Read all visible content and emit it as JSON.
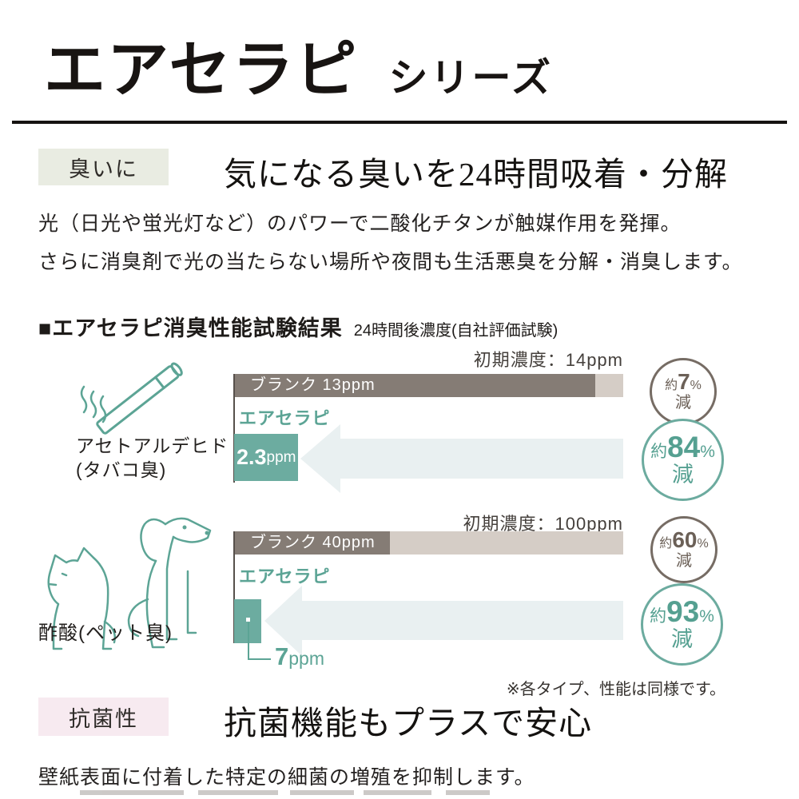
{
  "header": {
    "title": "エアセラピ",
    "series_suffix": "シリーズ"
  },
  "deodorize_section": {
    "tag": "臭いに",
    "heading": "気になる臭いを24時間吸着・分解",
    "body_line1": "光（日光や蛍光灯など）のパワーで二酸化チタンが触媒作用を発揮。",
    "body_line2": "さらに消臭剤で光の当たらない場所や夜間も生活悪臭を分解・消臭します。",
    "results_title": "■エアセラピ消臭性能試験結果",
    "results_subtitle": "24時間後濃度(自社評価試験)",
    "note": "※各タイプ、性能は同様です。"
  },
  "charts": [
    {
      "initial": "初期濃度：14ppm",
      "blank_bar_label": "ブランク 13ppm",
      "series_label": "エアセラピ",
      "value_main": "2.3",
      "value_unit": "ppm",
      "item_line1": "アセトアルデヒド",
      "item_line2": "(タバコ臭)",
      "badge_small": {
        "approx": "約",
        "value": "7",
        "pct": "%",
        "word": "減"
      },
      "badge_big": {
        "approx": "約",
        "value": "84",
        "pct": "%",
        "word": "減"
      }
    },
    {
      "initial": "初期濃度：100ppm",
      "blank_bar_label": "ブランク 40ppm",
      "series_label": "エアセラピ",
      "value_main": "7",
      "value_unit": "ppm",
      "item_line1": "酢酸(ペット臭)",
      "badge_small": {
        "approx": "約",
        "value": "60",
        "pct": "%",
        "word": "減"
      },
      "badge_big": {
        "approx": "約",
        "value": "93",
        "pct": "%",
        "word": "減"
      }
    }
  ],
  "chart_data": [
    {
      "type": "bar",
      "title": "エアセラピ消臭性能試験結果（アセトアルデヒド／タバコ臭）",
      "item": "アセトアルデヒド(タバコ臭)",
      "initial_concentration_ppm": 14,
      "categories": [
        "ブランク",
        "エアセラピ"
      ],
      "values_ppm_after_24h": [
        13,
        2.3
      ],
      "reduction_percent": [
        7,
        84
      ],
      "unit": "ppm",
      "xlim": [
        0,
        14
      ],
      "orientation": "horizontal"
    },
    {
      "type": "bar",
      "title": "エアセラピ消臭性能試験結果（酢酸／ペット臭）",
      "item": "酢酸(ペット臭)",
      "initial_concentration_ppm": 100,
      "categories": [
        "ブランク",
        "エアセラピ"
      ],
      "values_ppm_after_24h": [
        40,
        7
      ],
      "reduction_percent": [
        60,
        93
      ],
      "unit": "ppm",
      "xlim": [
        0,
        100
      ],
      "orientation": "horizontal"
    }
  ],
  "antibacterial_section": {
    "tag": "抗菌性",
    "heading": "抗菌機能もプラスで安心",
    "body": "壁紙表面に付着した特定の細菌の増殖を抑制します。"
  },
  "icons": {
    "chart1": "cigarette-smoke-icon",
    "chart2": "dog-and-cat-icon",
    "arrows": "reduction-arrow-icon"
  },
  "colors": {
    "accent_teal": "#6caca0",
    "teal_text": "#5ca495",
    "blank_bar_dark": "#857c75",
    "blank_bar_rest": "#d5cdc6",
    "arrow_fill": "#e9f0f1",
    "badge_brown": "#766c64",
    "tag_smell_bg": "#e9ece2",
    "tag_anti_bg": "#f7eaf0"
  }
}
